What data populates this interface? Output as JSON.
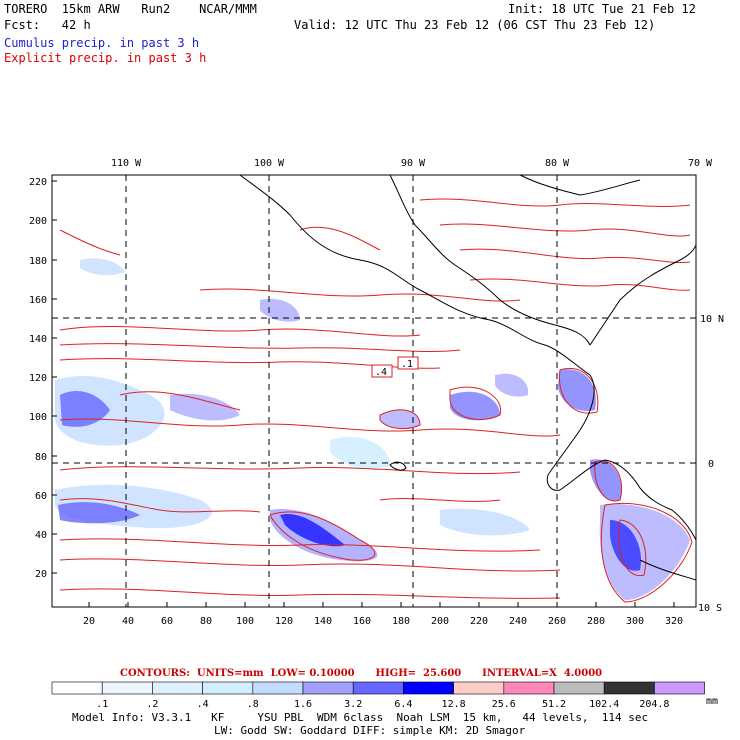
{
  "header": {
    "model": "TORERO  15km ARW   Run2    NCAR/MMM",
    "init": "Init: 18 UTC Tue 21 Feb 12",
    "fcst": "Fcst:   42 h",
    "valid": "Valid: 12 UTC Thu 23 Feb 12 (06 CST Thu 23 Feb 12)",
    "field1": "Cumulus precip. in past 3 h",
    "field2": "Explicit precip. in past 3 h"
  },
  "map": {
    "lon_labels": [
      "110 W",
      "100 W",
      "90 W",
      "80 W",
      "70 W"
    ],
    "lat_labels": [
      "10 N",
      "0",
      "10 S"
    ],
    "y_ticks": [
      "220",
      "200",
      "180",
      "160",
      "140",
      "120",
      "100",
      "80",
      "60",
      "40",
      "20"
    ],
    "x_ticks": [
      "20",
      "40",
      "60",
      "80",
      "100",
      "120",
      "140",
      "160",
      "180",
      "200",
      "220",
      "240",
      "260",
      "280",
      "300",
      "320"
    ],
    "contour_labels": [
      ".4",
      ".1"
    ]
  },
  "contour_info": "CONTOURS:  UNITS=mm  LOW= 0.10000      HIGH=  25.600      INTERVAL=X  4.0000",
  "colorbar": {
    "labels": [
      ".1",
      ".2",
      ".4",
      ".8",
      "1.6",
      "3.2",
      "6.4",
      "12.8",
      "25.6",
      "51.2",
      "102.4",
      "204.8"
    ],
    "unit": "mm",
    "colors": [
      "#ffffff",
      "#eef6ff",
      "#e0f0ff",
      "#d2eeff",
      "#c4dcff",
      "#a0a0ff",
      "#6666ff",
      "#0000ff",
      "#ffcccc",
      "#ff88bb",
      "#bbbbbb",
      "#333333",
      "#cc99ff"
    ]
  },
  "footer": {
    "line1": "Model Info: V3.3.1   KF     YSU PBL  WDM 6class  Noah LSM  15 km,   44 levels,  114 sec",
    "line2": "LW: Godd SW: Goddard DIFF: simple KM: 2D Smagor"
  }
}
